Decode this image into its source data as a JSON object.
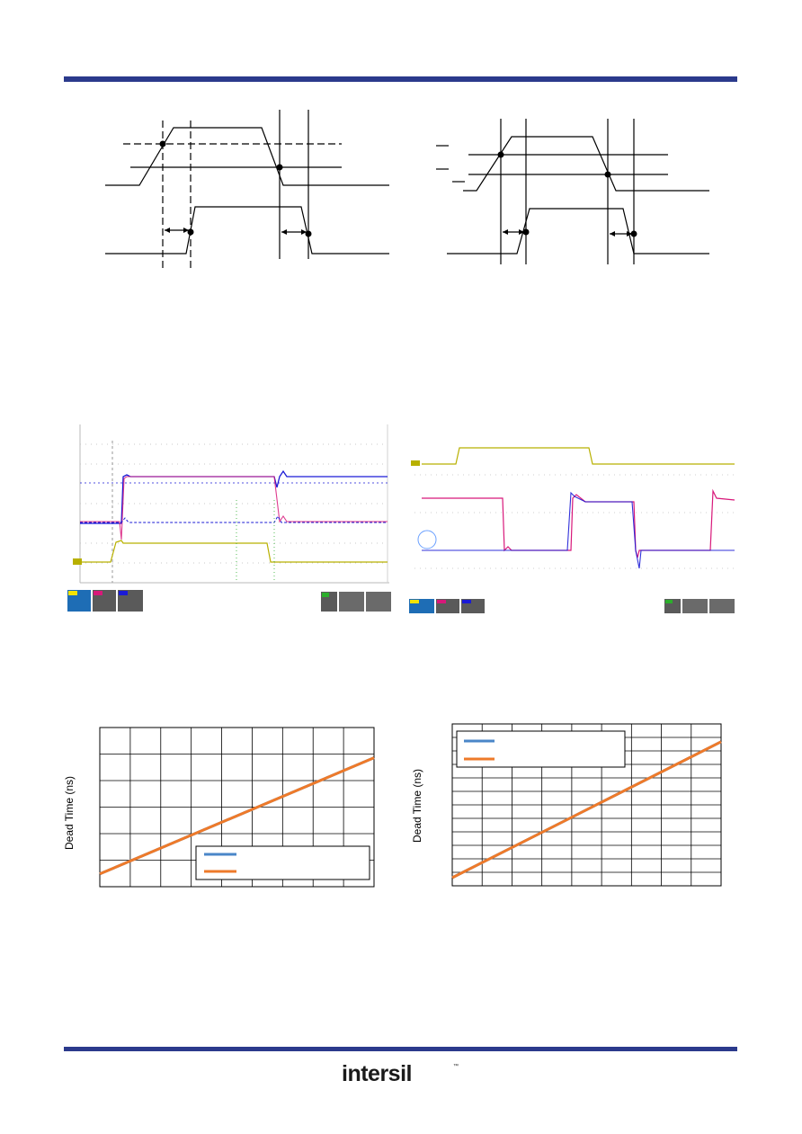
{
  "footer": {
    "logo_text": "intersil",
    "logo_mark": "™"
  },
  "plots": {
    "left": {
      "ylabel": "Dead Time (ns)"
    },
    "right": {
      "ylabel": "Dead Time (ns)"
    }
  },
  "chart_data": [
    {
      "type": "line",
      "ylabel": "Dead Time (ns)",
      "x": [
        0,
        1
      ],
      "series": [
        {
          "values": [
            0.08,
            0.81
          ],
          "color": "#4a86c8"
        },
        {
          "values": [
            0.08,
            0.81
          ],
          "color": "#ee7a2a"
        }
      ],
      "legend": "bottom-right",
      "grid": true
    },
    {
      "type": "line",
      "ylabel": "Dead Time (ns)",
      "x": [
        0,
        1
      ],
      "series": [
        {
          "values": [
            0.05,
            0.89
          ],
          "color": "#4a86c8"
        },
        {
          "values": [
            0.05,
            0.89
          ],
          "color": "#ee7a2a"
        }
      ],
      "legend": "top-left",
      "grid": true
    }
  ],
  "colors": {
    "rule": "#2b3a8c",
    "scope_yellow": "#b8b000",
    "scope_magenta": "#d8187a",
    "scope_blue": "#1a1ad6",
    "scope_green": "#2cae2c"
  }
}
